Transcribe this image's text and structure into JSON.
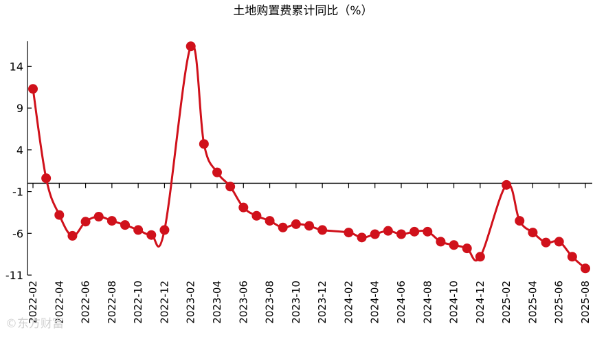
{
  "chart_data": {
    "type": "line",
    "title": "土地购置费累计同比（%）",
    "xlabel": "",
    "ylabel": "",
    "ylim": [
      -11,
      17
    ],
    "yticks": [
      14,
      9,
      4,
      -1,
      -6,
      -11
    ],
    "baseline": 0,
    "grid": false,
    "legend": "none",
    "x": [
      "2022-02",
      "2022-03",
      "2022-04",
      "2022-05",
      "2022-06",
      "2022-07",
      "2022-08",
      "2022-09",
      "2022-10",
      "2022-11",
      "2022-12",
      "2023-02",
      "2023-03",
      "2023-04",
      "2023-05",
      "2023-06",
      "2023-07",
      "2023-08",
      "2023-09",
      "2023-10",
      "2023-11",
      "2023-12",
      "2024-02",
      "2024-03",
      "2024-04",
      "2024-05",
      "2024-06",
      "2024-07",
      "2024-08",
      "2024-09",
      "2024-10",
      "2024-11",
      "2024-12",
      "2025-02",
      "2025-03",
      "2025-04",
      "2025-05",
      "2025-06",
      "2025-07",
      "2025-08"
    ],
    "xticklabels": [
      "2022-02",
      "2022-04",
      "2022-06",
      "2022-08",
      "2022-10",
      "2022-12",
      "2023-02",
      "2023-04",
      "2023-06",
      "2023-08",
      "2023-10",
      "2023-12",
      "2024-02",
      "2024-04",
      "2024-06",
      "2024-08",
      "2024-10",
      "2024-12",
      "2025-02",
      "2025-04",
      "2025-06",
      "2025-08"
    ],
    "series": [
      {
        "values": [
          11.3,
          0.6,
          -3.8,
          -6.3,
          -4.6,
          -4.0,
          -4.5,
          -5.0,
          -5.6,
          -6.2,
          -5.6,
          16.4,
          4.7,
          1.3,
          -0.4,
          -2.9,
          -3.9,
          -4.5,
          -5.3,
          -4.9,
          -5.1,
          -5.6,
          -5.9,
          -6.5,
          -6.1,
          -5.7,
          -6.1,
          -5.8,
          -5.8,
          -7.0,
          -7.4,
          -7.8,
          -8.8,
          -0.2,
          -4.5,
          -5.9,
          -7.1,
          -7.0,
          -8.8,
          -10.2
        ],
        "color": "#d0111b"
      }
    ],
    "marker_color": "#d0111b",
    "axis_color": "#000000"
  },
  "watermark": "©东方财富"
}
